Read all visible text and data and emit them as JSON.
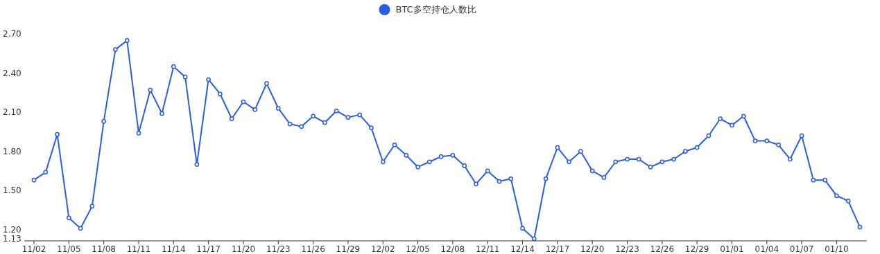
{
  "chart_data": {
    "type": "line",
    "legend": "top",
    "marker": "circle",
    "line_style": "solid",
    "categories": [
      "11/02",
      null,
      null,
      "11/05",
      null,
      null,
      "11/08",
      null,
      null,
      "11/11",
      null,
      null,
      "11/14",
      null,
      null,
      "11/17",
      null,
      null,
      "11/20",
      null,
      null,
      "11/23",
      null,
      null,
      "11/26",
      null,
      null,
      "11/29",
      null,
      null,
      "12/02",
      null,
      null,
      "12/05",
      null,
      null,
      "12/08",
      null,
      null,
      "12/11",
      null,
      null,
      "12/14",
      null,
      null,
      "12/17",
      null,
      null,
      "12/20",
      null,
      null,
      "12/23",
      null,
      null,
      "12/26",
      null,
      null,
      "12/29",
      null,
      null,
      "01/01",
      null,
      null,
      "01/04",
      null,
      null,
      "01/07",
      null,
      null,
      "01/10",
      null,
      null
    ],
    "ylim": [
      1.13,
      2.7
    ],
    "yticks": [
      1.13,
      {
        "value": 1.2,
        "label": "1.20"
      },
      {
        "value": 1.5,
        "label": "1.50"
      },
      {
        "value": 1.8,
        "label": "1.80"
      },
      {
        "value": 2.1,
        "label": "2.10"
      },
      {
        "value": 2.4,
        "label": "2.40"
      },
      {
        "value": 2.7,
        "label": "2.70"
      }
    ],
    "series": [
      {
        "name": "BTC多空持仓人数比",
        "color": "#2b5ce6",
        "values": [
          1.58,
          1.64,
          1.93,
          1.29,
          1.21,
          1.38,
          2.03,
          2.58,
          2.65,
          1.94,
          2.27,
          2.09,
          2.45,
          2.37,
          1.7,
          2.35,
          2.24,
          2.05,
          2.18,
          2.12,
          2.32,
          2.13,
          2.01,
          1.99,
          2.07,
          2.02,
          2.11,
          2.06,
          2.08,
          1.98,
          1.72,
          1.85,
          1.77,
          1.68,
          1.72,
          1.76,
          1.77,
          1.69,
          1.55,
          1.65,
          1.57,
          1.59,
          1.21,
          1.13,
          1.59,
          1.83,
          1.72,
          1.8,
          1.65,
          1.6,
          1.72,
          1.74,
          1.74,
          1.68,
          1.72,
          1.74,
          1.8,
          1.83,
          1.92,
          2.05,
          2.0,
          2.07,
          1.88,
          1.88,
          1.85,
          1.74,
          1.92,
          1.58,
          1.58,
          1.46,
          1.42,
          1.22
        ]
      }
    ]
  }
}
